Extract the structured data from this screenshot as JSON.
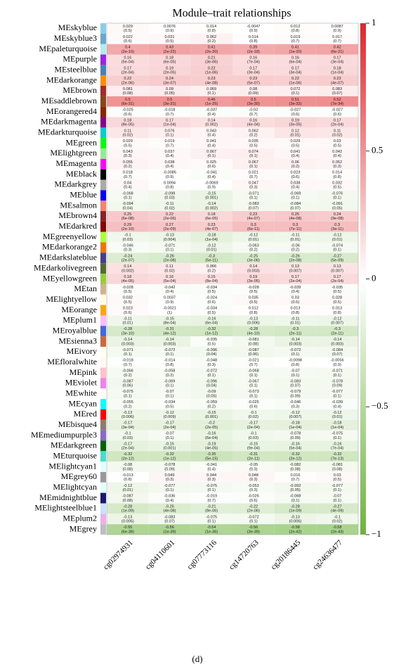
{
  "chart_data": {
    "type": "heatmap",
    "title": "Module–trait relationships",
    "x": [
      "cg02974931",
      "cg04110601",
      "cg07773116",
      "cg14720763",
      "cg20186445",
      "cg24636477"
    ],
    "y": [
      "MEskyblue",
      "MEskyblue3",
      "MEpaleturquoise",
      "MEpurple",
      "MEsteelblue",
      "MEdarkorange",
      "MEbrown",
      "MEsaddlebrown",
      "MEorangered4",
      "MEdarkmagenta",
      "MEdarkturquoise",
      "MEgreen",
      "MElightgreen",
      "MEmagenta",
      "MEblack",
      "MEdarkgrey",
      "MEblue",
      "MEsalmon",
      "MEbrown4",
      "MEdarkred",
      "MEgreenyellow",
      "MEdarkorange2",
      "MEdarkslateblue",
      "MEdarkolivegreen",
      "MEyellowgreen",
      "MEtan",
      "MElightyellow",
      "MEorange",
      "MEplum1",
      "MEroyalblue",
      "MEsienna3",
      "MEivory",
      "MEfloralwhite",
      "MEpink",
      "MEviolet",
      "MEwhite",
      "MEcyan",
      "MEred",
      "MEbisque4",
      "MEmediumpurple3",
      "MEdarkgreen",
      "MEturquoise",
      "MElightcyan1",
      "MEgrey60",
      "MElightcyan",
      "MEmidnightblue",
      "MElightsteelblue1",
      "MEplum2",
      "MEgrey"
    ],
    "row_colors": [
      "#87ceeb",
      "#6ca6cd",
      "#afeeee",
      "#a020f0",
      "#4682b4",
      "#ff8c00",
      "#a52a2a",
      "#8b4513",
      "#8b2500",
      "#8b008b",
      "#00ced1",
      "#00ff00",
      "#90ee90",
      "#ff00ff",
      "#000000",
      "#a9a9a9",
      "#0000ff",
      "#fa8072",
      "#8b2323",
      "#8b0000",
      "#adff2f",
      "#ee7600",
      "#483d8b",
      "#556b2f",
      "#9acd32",
      "#d2b48c",
      "#ffffe0",
      "#ffa500",
      "#ffbbff",
      "#4169e1",
      "#cd6839",
      "#fffff0",
      "#fffaf0",
      "#ffc0cb",
      "#ee82ee",
      "#ffffff",
      "#00ffff",
      "#ff0000",
      "#8b7d6b",
      "#8968cd",
      "#006400",
      "#40e0d0",
      "#e0ffff",
      "#999999",
      "#e0ffff",
      "#191970",
      "#cae1ff",
      "#eeaeee",
      "#bebebe"
    ],
    "values": [
      [
        0.029,
        0.0076,
        0.014,
        -0.0047,
        0.012,
        0.0087
      ],
      [
        0.022,
        0.031,
        0.062,
        0.014,
        0.019,
        0.017
      ],
      [
        0.4,
        0.43,
        0.41,
        0.39,
        0.41,
        0.42
      ],
      [
        0.16,
        0.18,
        0.21,
        0.16,
        0.16,
        0.17
      ],
      [
        0.17,
        0.19,
        0.22,
        0.17,
        0.17,
        0.18
      ],
      [
        0.22,
        0.24,
        0.23,
        0.23,
        0.22,
        0.23
      ],
      [
        0.081,
        0.09,
        0.069,
        0.08,
        0.072,
        0.083
      ],
      [
        0.5,
        0.5,
        0.46,
        0.5,
        0.51,
        0.52
      ],
      [
        -0.025,
        -0.018,
        -0.037,
        -0.02,
        -0.027,
        -0.027
      ],
      [
        0.18,
        0.17,
        0.14,
        0.16,
        0.19,
        0.17
      ],
      [
        0.11,
        0.076,
        0.043,
        0.062,
        0.12,
        0.11
      ],
      [
        0.029,
        0.019,
        0.041,
        0.035,
        0.029,
        0.03
      ],
      [
        0.043,
        0.037,
        0.067,
        0.074,
        0.041,
        0.042
      ],
      [
        0.055,
        0.038,
        0.025,
        0.067,
        0.06,
        0.052
      ],
      [
        0.018,
        -0.0085,
        -0.041,
        0.021,
        0.023,
        0.014
      ],
      [
        0.04,
        0.0094,
        -0.0069,
        0.047,
        0.038,
        0.032
      ],
      [
        -0.068,
        -0.099,
        -0.15,
        -0.071,
        -0.069,
        -0.076
      ],
      [
        -0.094,
        -0.11,
        -0.14,
        -0.083,
        -0.084,
        -0.091
      ],
      [
        0.25,
        0.22,
        0.18,
        0.23,
        0.25,
        0.24
      ],
      [
        0.29,
        0.27,
        0.23,
        0.3,
        0.3,
        0.3
      ],
      [
        -0.1,
        -0.13,
        -0.18,
        -0.12,
        -0.11,
        -0.12
      ],
      [
        -0.046,
        -0.071,
        -0.12,
        -0.063,
        -0.06,
        -0.074
      ],
      [
        -0.24,
        -0.26,
        -0.3,
        -0.25,
        -0.26,
        -0.27
      ],
      [
        0.14,
        0.11,
        0.066,
        0.14,
        0.13,
        0.13
      ],
      [
        0.18,
        0.16,
        0.15,
        0.19,
        0.17,
        0.17
      ],
      [
        -0.028,
        -0.042,
        -0.034,
        -0.028,
        -0.039,
        -0.035
      ],
      [
        0.032,
        0.0037,
        -0.024,
        0.035,
        0.03,
        0.028
      ],
      [
        0.023,
        -0.0021,
        -0.034,
        0.012,
        0.013,
        0.013
      ],
      [
        -0.11,
        -0.15,
        -0.16,
        -0.13,
        -0.11,
        -0.12
      ],
      [
        -0.28,
        -0.31,
        -0.32,
        -0.28,
        -0.3,
        -0.3
      ],
      [
        -0.14,
        -0.14,
        -0.035,
        -0.081,
        -0.14,
        -0.14
      ],
      [
        -0.071,
        -0.072,
        -0.096,
        -0.087,
        -0.072,
        -0.084
      ],
      [
        -0.018,
        -0.014,
        -0.048,
        -0.021,
        -0.0098,
        -0.0056
      ],
      [
        -0.066,
        -0.058,
        -0.072,
        -0.068,
        -0.07,
        -0.071
      ],
      [
        -0.087,
        -0.069,
        -0.096,
        -0.067,
        -0.083,
        -0.078
      ],
      [
        -0.075,
        -0.07,
        -0.09,
        -0.073,
        -0.079,
        -0.077
      ],
      [
        -0.055,
        -0.034,
        -0.059,
        -0.025,
        -0.046,
        -0.039
      ],
      [
        -0.13,
        -0.12,
        -0.15,
        -0.1,
        -0.12,
        -0.12
      ],
      [
        -0.17,
        -0.17,
        -0.2,
        -0.17,
        -0.18,
        -0.18
      ],
      [
        -0.1,
        -0.07,
        -0.16,
        -0.1,
        -0.078,
        -0.075
      ],
      [
        -0.17,
        -0.15,
        -0.19,
        -0.15,
        -0.16,
        -0.16
      ],
      [
        -0.32,
        -0.32,
        -0.35,
        -0.31,
        -0.32,
        -0.32
      ],
      [
        -0.08,
        -0.078,
        -0.041,
        -0.05,
        -0.082,
        -0.081
      ],
      [
        -0.013,
        0.049,
        0.044,
        0.048,
        0.016,
        0.03
      ],
      [
        -0.12,
        -0.077,
        -0.075,
        -0.053,
        -0.092,
        -0.077
      ],
      [
        -0.087,
        -0.036,
        -0.019,
        -0.026,
        -0.068,
        -0.07
      ],
      [
        -0.28,
        -0.25,
        -0.21,
        -0.22,
        -0.28,
        -0.27
      ],
      [
        -0.13,
        -0.083,
        -0.075,
        -0.072,
        -0.13,
        -0.1
      ],
      [
        -0.55,
        -0.56,
        -0.54,
        -0.56,
        -0.58,
        -0.58
      ]
    ],
    "pvalues": [
      [
        "(0.5)",
        "(0.9)",
        "(0.8)",
        "(0.9)",
        "(0.8)",
        "(0.9)"
      ],
      [
        "(0.6)",
        "(0.5)",
        "(0.2)",
        "(0.8)",
        "(0.7)",
        "(0.7)"
      ],
      [
        "(2e-19)",
        "(2e-22)",
        "(2e-20)",
        "(2e-18)",
        "(1e-20)",
        "(6e-21)"
      ],
      [
        "(5e-04)",
        "(6e-05)",
        "(3e-06)",
        "(7e-04)",
        "(6e-04)",
        "(3e-04)"
      ],
      [
        "(2e-04)",
        "(2e-05)",
        "(1e-06)",
        "(3e-04)",
        "(3e-04)",
        "(1e-04)"
      ],
      [
        "(2e-06)",
        "(3e-07)",
        "(4e-08)",
        "(5e-07)",
        "(1e-06)",
        "(4e-07)"
      ],
      [
        "(0.08)",
        "(0.05)",
        "(0.1)",
        "(0.09)",
        "(0.1)",
        "(0.07)"
      ],
      [
        "(6e-31)",
        "(3e-31)",
        "(1e-25)",
        "(3e-30)",
        "(3e-32)",
        "(7e-34)"
      ],
      [
        "(0.6)",
        "(0.7)",
        "(0.4)",
        "(0.7)",
        "(0.6)",
        "(0.6)"
      ],
      [
        "(8e-05)",
        "(1e-04)",
        "(0.002)",
        "(4e-04)",
        "(3e-05)",
        "(2e-04)"
      ],
      [
        "(0.02)",
        "(0.1)",
        "(0.4)",
        "(0.2)",
        "(0.01)",
        "(0.02)"
      ],
      [
        "(0.5)",
        "(0.7)",
        "(0.4)",
        "(0.5)",
        "(0.5)",
        "(0.5)"
      ],
      [
        "(0.3)",
        "(0.4)",
        "(0.1)",
        "(0.1)",
        "(0.4)",
        "(0.4)"
      ],
      [
        "(0.2)",
        "(0.4)",
        "(0.6)",
        "(0.1)",
        "(0.2)",
        "(0.3)"
      ],
      [
        "(0.7)",
        "(0.9)",
        "(0.4)",
        "(0.7)",
        "(0.6)",
        "(0.8)"
      ],
      [
        "(0.4)",
        "(0.8)",
        "(0.9)",
        "(0.3)",
        "(0.4)",
        "(0.5)"
      ],
      [
        "(0.1)",
        "(0.03)",
        "(0.001)",
        "(0.1)",
        "(0.1)",
        "(0.1)"
      ],
      [
        "(0.04)",
        "(0.02)",
        "(0.002)",
        "(0.07)",
        "(0.07)",
        "(0.05)"
      ],
      [
        "(6e-08)",
        "(2e-06)",
        "(6e-05)",
        "(4e-07)",
        "(4e-08)",
        "(9e-08)"
      ],
      [
        "(2e-10)",
        "(2e-09)",
        "(4e-07)",
        "(6e-11)",
        "(7e-11)",
        "(3e-11)"
      ],
      [
        "(0.03)",
        "(0.004)",
        "(1e-04)",
        "(0.01)",
        "(0.01)",
        "(0.01)"
      ],
      [
        "(0.3)",
        "(0.1)",
        "(0.01)",
        "(0.2)",
        "(0.2)",
        "(0.1)"
      ],
      [
        "(2e-07)",
        "(2e-08)",
        "(5e-11)",
        "(3e-08)",
        "(2e-08)",
        "(5e-09)"
      ],
      [
        "(0.002)",
        "(0.02)",
        "(0.2)",
        "(0.003)",
        "(0.007)",
        "(0.007)"
      ],
      [
        "(4e-05)",
        "(5e-04)",
        "(8e-04)",
        "(3e-05)",
        "(2e-04)",
        "(2e-04)"
      ],
      [
        "(0.5)",
        "(0.4)",
        "(0.5)",
        "(0.5)",
        "(0.4)",
        "(0.5)"
      ],
      [
        "(0.5)",
        "(0.9)",
        "(0.6)",
        "(0.5)",
        "(0.5)",
        "(0.5)"
      ],
      [
        "(0.6)",
        "(1)",
        "(0.5)",
        "(0.8)",
        "(0.8)",
        "(0.8)"
      ],
      [
        "(0.01)",
        "(8e-04)",
        "(6e-04)",
        "(0.006)",
        "(0.01)",
        "(0.007)"
      ],
      [
        "(3e-10)",
        "(4e-12)",
        "(1e-12)",
        "(4e-10)",
        "(2e-11)",
        "(2e-11)"
      ],
      [
        "(0.003)",
        "(0.003)",
        "(0.5)",
        "(0.08)",
        "(0.003)",
        "(0.003)"
      ],
      [
        "(0.1)",
        "(0.1)",
        "(0.04)",
        "(0.06)",
        "(0.1)",
        "(0.07)"
      ],
      [
        "(0.7)",
        "(0.8)",
        "(0.3)",
        "(0.7)",
        "(0.8)",
        "(0.9)"
      ],
      [
        "(0.2)",
        "(0.2)",
        "(0.1)",
        "(0.1)",
        "(0.1)",
        "(0.1)"
      ],
      [
        "(0.06)",
        "(0.1)",
        "(0.04)",
        "(0.1)",
        "(0.07)",
        "(0.09)"
      ],
      [
        "(0.1)",
        "(0.1)",
        "(0.05)",
        "(0.1)",
        "(0.09)",
        "(0.1)"
      ],
      [
        "(0.2)",
        "(0.5)",
        "(0.2)",
        "(0.6)",
        "(0.3)",
        "(0.4)"
      ],
      [
        "(0.006)",
        "(0.009)",
        "(0.001)",
        "(0.02)",
        "(0.007)",
        "(0.01)"
      ],
      [
        "(3e-04)",
        "(2e-04)",
        "(2e-05)",
        "(2e-04)",
        "(1e-04)",
        "(1e-04)"
      ],
      [
        "(0.03)",
        "(0.1)",
        "(6e-04)",
        "(0.03)",
        "(0.09)",
        "(0.1)"
      ],
      [
        "(2e-04)",
        "(0.001)",
        "(4e-05)",
        "(9e-04)",
        "(5e-04)",
        "(7e-04)"
      ],
      [
        "(2e-12)",
        "(1e-12)",
        "(5e-15)",
        "(2e-11)",
        "(2e-12)",
        "(7e-13)"
      ],
      [
        "(0.08)",
        "(0.09)",
        "(0.4)",
        "(0.3)",
        "(0.08)",
        "(0.08)"
      ],
      [
        "(0.8)",
        "(0.3)",
        "(0.3)",
        "(0.3)",
        "(0.7)",
        "(0.5)"
      ],
      [
        "(0.01)",
        "(0.1)",
        "(0.1)",
        "(0.3)",
        "(0.05)",
        "(0.1)"
      ],
      [
        "(0.08)",
        "(0.4)",
        "(0.7)",
        "(0.6)",
        "(0.1)",
        "(0.1)"
      ],
      [
        "(1e-09)",
        "(4e-08)",
        "(8e-06)",
        "(2e-06)",
        "(1e-09)",
        "(4e-09)"
      ],
      [
        "(0.005)",
        "(0.07)",
        "(0.1)",
        "(0.1)",
        "(0.006)",
        "(0.02)"
      ],
      [
        "(6e-38)",
        "(1e-39)",
        "(1e-36)",
        "(3e-39)",
        "(2e-42)",
        "(2e-43)"
      ]
    ],
    "zlim": [
      -1,
      1
    ],
    "zticks": [
      {
        "value": 1,
        "label": "1"
      },
      {
        "value": 0.5,
        "label": "0.5"
      },
      {
        "value": 0,
        "label": "0"
      },
      {
        "value": -0.5,
        "label": "−0.5"
      },
      {
        "value": -1,
        "label": "−1"
      }
    ],
    "colors": {
      "low": "#6db33f",
      "mid": "#ffffff",
      "high": "#e0262b"
    }
  },
  "caption": "(d)"
}
